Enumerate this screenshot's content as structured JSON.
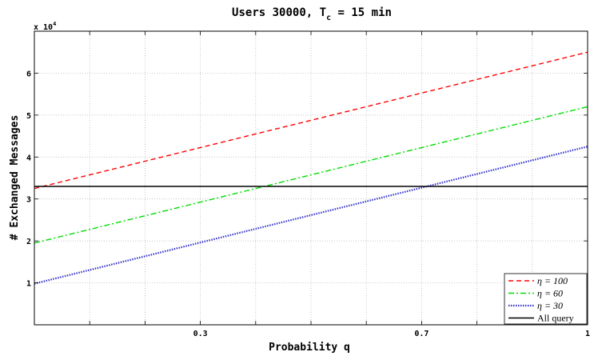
{
  "chart_data": {
    "type": "line",
    "title": "Users 30000, T",
    "title_sub": "c",
    "title_tail": " = 15 min",
    "xlabel": "Probability q",
    "ylabel": "# Exchanged Messages",
    "y_multiplier": "x 10",
    "y_multiplier_exp": "4",
    "xlim": [
      0.0,
      1.0
    ],
    "ylim": [
      0,
      7
    ],
    "x_ticks": [
      0.1,
      0.2,
      0.3,
      0.4,
      0.5,
      0.6,
      0.7,
      0.8,
      0.9,
      1.0
    ],
    "x_tick_labels": [
      "",
      "",
      "0.3",
      "",
      "",
      "",
      "0.7",
      "",
      "",
      "1"
    ],
    "y_ticks": [
      1,
      2,
      3,
      4,
      5,
      6
    ],
    "y_tick_labels": [
      "1",
      "2",
      "3",
      "4",
      "5",
      "6"
    ],
    "grid": true,
    "legend_position": "bottom-right",
    "series": [
      {
        "name": "η = 100",
        "x": [
          0.0,
          1.0
        ],
        "values": [
          3.25,
          6.5
        ],
        "color": "#ff0000",
        "style": "dashed"
      },
      {
        "name": "η = 60",
        "x": [
          0.0,
          1.0
        ],
        "values": [
          1.95,
          5.2
        ],
        "color": "#00dd00",
        "style": "dashdot"
      },
      {
        "name": "η = 30",
        "x": [
          0.0,
          1.0
        ],
        "values": [
          0.98,
          4.25
        ],
        "color": "#3333cc",
        "style": "dotted"
      },
      {
        "name": "All query",
        "x": [
          0.0,
          1.0
        ],
        "values": [
          3.3,
          3.3
        ],
        "color": "#000000",
        "style": "solid"
      }
    ]
  }
}
